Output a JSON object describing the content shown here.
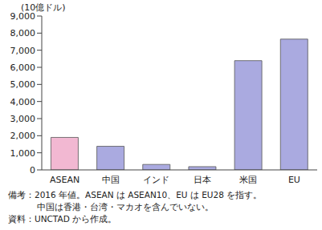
{
  "chart_data": {
    "type": "bar",
    "y_label": "(10億ドル)",
    "categories": [
      "ASEAN",
      "中国",
      "インド",
      "日本",
      "米国",
      "EU"
    ],
    "values": [
      1900,
      1380,
      320,
      190,
      6390,
      7650
    ],
    "colors": [
      "#f2b8d2",
      "#aaaae0",
      "#aaaae0",
      "#aaaae0",
      "#aaaae0",
      "#aaaae0"
    ],
    "ylim": [
      0,
      9000
    ],
    "yticks": [
      0,
      {
        "value": 1000,
        "label": "1,000"
      },
      {
        "value": 2000,
        "label": "2,000"
      },
      {
        "value": 3000,
        "label": "3,000"
      },
      {
        "value": 4000,
        "label": "4,000"
      },
      {
        "value": 5000,
        "label": "5,000"
      },
      {
        "value": 6000,
        "label": "6,000"
      },
      {
        "value": 7000,
        "label": "7,000"
      },
      {
        "value": 8000,
        "label": "8,000"
      },
      {
        "value": 9000,
        "label": "9,000"
      }
    ],
    "grid": false,
    "notes": [
      "備考：2016 年値。ASEAN は ASEAN10、EU は EU28 を指す。",
      "中国は香港・台湾・マカオを含んでいない。",
      "資料：UNCTAD から作成。"
    ]
  }
}
